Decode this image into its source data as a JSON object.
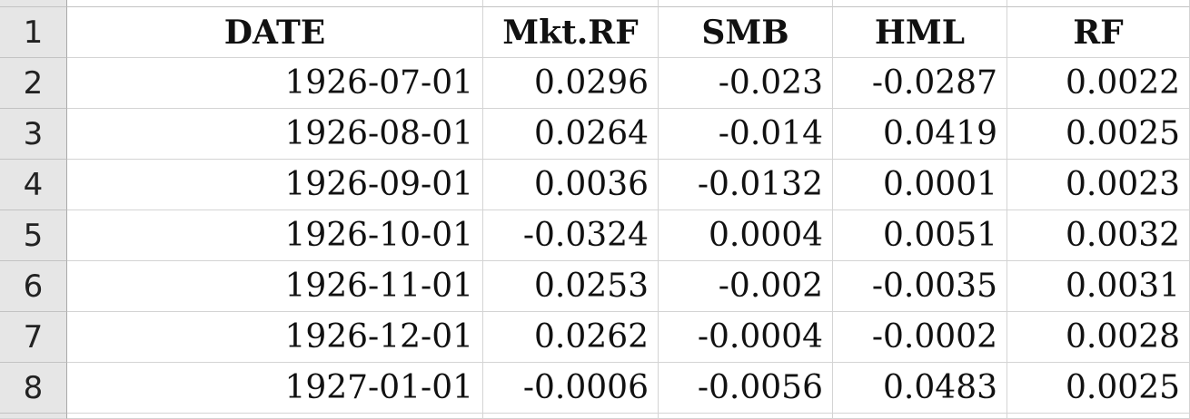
{
  "row_numbers": [
    "1",
    "2",
    "3",
    "4",
    "5",
    "6",
    "7",
    "8"
  ],
  "header": {
    "date": "DATE",
    "mkt_rf": "Mkt.RF",
    "smb": "SMB",
    "hml": "HML",
    "rf": "RF"
  },
  "rows": [
    {
      "date": "1926-07-01",
      "mkt_rf": "0.0296",
      "smb": "-0.023",
      "hml": "-0.0287",
      "rf": "0.0022"
    },
    {
      "date": "1926-08-01",
      "mkt_rf": "0.0264",
      "smb": "-0.014",
      "hml": "0.0419",
      "rf": "0.0025"
    },
    {
      "date": "1926-09-01",
      "mkt_rf": "0.0036",
      "smb": "-0.0132",
      "hml": "0.0001",
      "rf": "0.0023"
    },
    {
      "date": "1926-10-01",
      "mkt_rf": "-0.0324",
      "smb": "0.0004",
      "hml": "0.0051",
      "rf": "0.0032"
    },
    {
      "date": "1926-11-01",
      "mkt_rf": "0.0253",
      "smb": "-0.002",
      "hml": "-0.0035",
      "rf": "0.0031"
    },
    {
      "date": "1926-12-01",
      "mkt_rf": "0.0262",
      "smb": "-0.0004",
      "hml": "-0.0002",
      "rf": "0.0028"
    },
    {
      "date": "1927-01-01",
      "mkt_rf": "-0.0006",
      "smb": "-0.0056",
      "hml": "0.0483",
      "rf": "0.0025"
    }
  ]
}
